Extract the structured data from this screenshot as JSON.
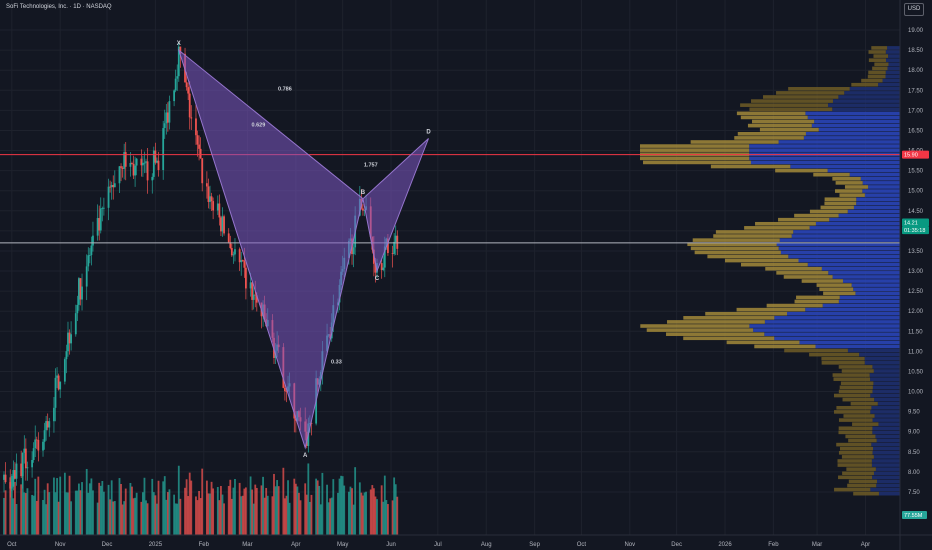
{
  "header": {
    "title": "SoFi Technologies, Inc. · 1D · NASDAQ",
    "currency": "USD"
  },
  "chart_data": {
    "type": "candlestick",
    "symbol": "SoFi Technologies, Inc.",
    "interval": "1D",
    "exchange": "NASDAQ",
    "y_ticks": [
      "7.50",
      "8.00",
      "8.50",
      "9.00",
      "9.50",
      "10.00",
      "10.50",
      "11.00",
      "11.50",
      "12.00",
      "12.50",
      "13.00",
      "13.50",
      "14.00",
      "14.50",
      "15.00",
      "15.50",
      "16.00",
      "16.50",
      "17.00",
      "17.50",
      "18.00",
      "18.50",
      "19.00"
    ],
    "ylim": [
      7.3,
      19.3
    ],
    "x_ticks": [
      "Oct",
      "Nov",
      "Dec",
      "2025",
      "Feb",
      "Mar",
      "Apr",
      "May",
      "Jun",
      "Jul",
      "Aug",
      "Sep",
      "Oct",
      "Nov",
      "Dec",
      "2026",
      "Feb",
      "Mar",
      "Apr"
    ],
    "ohlc_path": [
      [
        "2024-09-26",
        7.8
      ],
      [
        "2024-10-20",
        8.6
      ],
      [
        "2024-11-15",
        12.8
      ],
      [
        "2024-12-10",
        15.8
      ],
      [
        "2024-12-24",
        15.4
      ],
      [
        "2025-01-03",
        15.8
      ],
      [
        "2025-01-16",
        18.4
      ],
      [
        "2025-02-01",
        15.2
      ],
      [
        "2025-02-25",
        13.0
      ],
      [
        "2025-03-15",
        11.5
      ],
      [
        "2025-04-07",
        8.7
      ],
      [
        "2025-04-25",
        12.0
      ],
      [
        "2025-05-14",
        14.8
      ],
      [
        "2025-05-22",
        13.2
      ],
      [
        "2025-06-05",
        13.8
      ]
    ],
    "harmonic_pattern": {
      "points": [
        {
          "label": "X",
          "date": "2025-01-16",
          "price": 18.5
        },
        {
          "label": "A",
          "date": "2025-04-07",
          "price": 8.6
        },
        {
          "label": "B",
          "date": "2025-05-14",
          "price": 14.8
        },
        {
          "label": "C",
          "date": "2025-05-23",
          "price": 13.0
        },
        {
          "label": "D",
          "date": "2025-06-25",
          "price": 16.3
        }
      ],
      "ratios": [
        {
          "text": "0.786",
          "date": "2025-03-25",
          "price": 17.5
        },
        {
          "text": "0.629",
          "date": "2025-03-08",
          "price": 16.6
        },
        {
          "text": "0.33",
          "date": "2025-04-27",
          "price": 10.7
        },
        {
          "text": "1.757",
          "date": "2025-05-19",
          "price": 15.6
        }
      ]
    },
    "horizontal_lines": [
      {
        "price": 15.9,
        "color": "#f23645"
      },
      {
        "price": 13.7,
        "color": "#b2b5be"
      }
    ],
    "price_labels": [
      {
        "text": "15.90",
        "price": 15.9,
        "color": "#f23645"
      },
      {
        "text": "14.21",
        "price": 14.21,
        "color": "#089981"
      },
      {
        "text": "01:35:18",
        "price": 14.02,
        "color": "#089981"
      }
    ],
    "volume_label": "77.55M",
    "volume_profile_rows": 110,
    "colors": {
      "background": "#131722",
      "up": "#26a69a",
      "down": "#ef5350",
      "pattern_fill": "#7e57c2",
      "profile_blue": "#2a45b8",
      "profile_gold": "#a38a3a",
      "grid": "#1e222d",
      "text": "#d1d4dc"
    }
  }
}
